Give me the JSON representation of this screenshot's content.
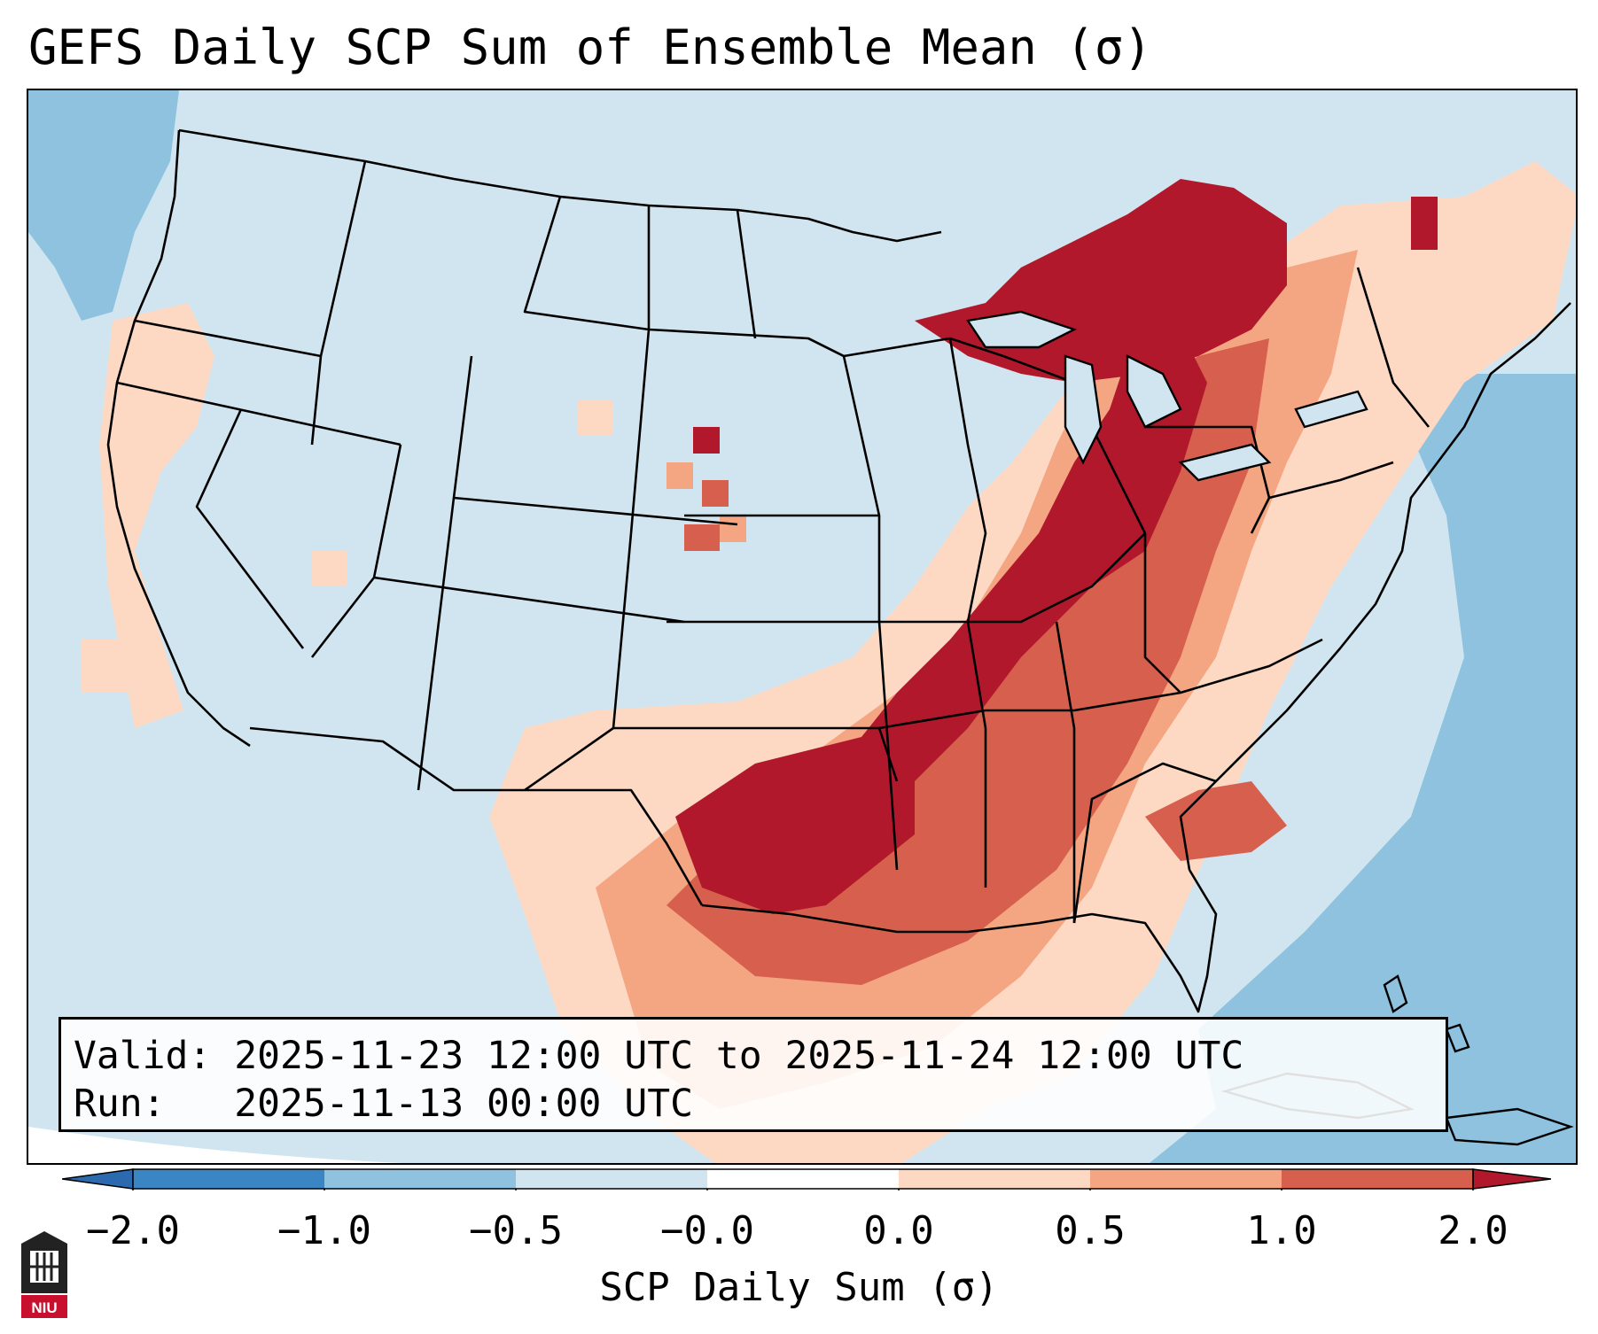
{
  "title": "GEFS Daily SCP Sum of Ensemble Mean (σ)",
  "info": {
    "valid_line": "Valid: 2025-11-23 12:00 UTC to 2025-11-24 12:00 UTC",
    "run_line": "Run:   2025-11-13 00:00 UTC"
  },
  "colorbar": {
    "label": "SCP Daily Sum (σ)",
    "ticks": [
      "−2.0",
      "−1.0",
      "−0.5",
      "−0.0",
      "0.0",
      "0.5",
      "1.0",
      "2.0"
    ],
    "bins": [
      {
        "range": "< -2.0",
        "color": "#2c6ab0"
      },
      {
        "range": "-2.0 to -1.0",
        "color": "#3a85c4"
      },
      {
        "range": "-1.0 to -0.5",
        "color": "#8fc2df"
      },
      {
        "range": "-0.5 to -0.0",
        "color": "#d1e5f0"
      },
      {
        "range": "-0.0 to 0.0",
        "color": "#ffffff"
      },
      {
        "range": "0.0 to 0.5",
        "color": "#fdd9c4"
      },
      {
        "range": "0.5 to 1.0",
        "color": "#f4a582"
      },
      {
        "range": "1.0 to 2.0",
        "color": "#d6604d"
      },
      {
        "range": "> 2.0",
        "color": "#b2182b"
      }
    ]
  },
  "logo_text": "NIU",
  "colors": {
    "ocean_light": "#d1e5f0",
    "ocean_mid": "#8fc2df",
    "pos_light": "#fdd9c4",
    "pos_mid": "#f4a582",
    "pos_strong": "#d6604d",
    "pos_max": "#b2182b"
  }
}
